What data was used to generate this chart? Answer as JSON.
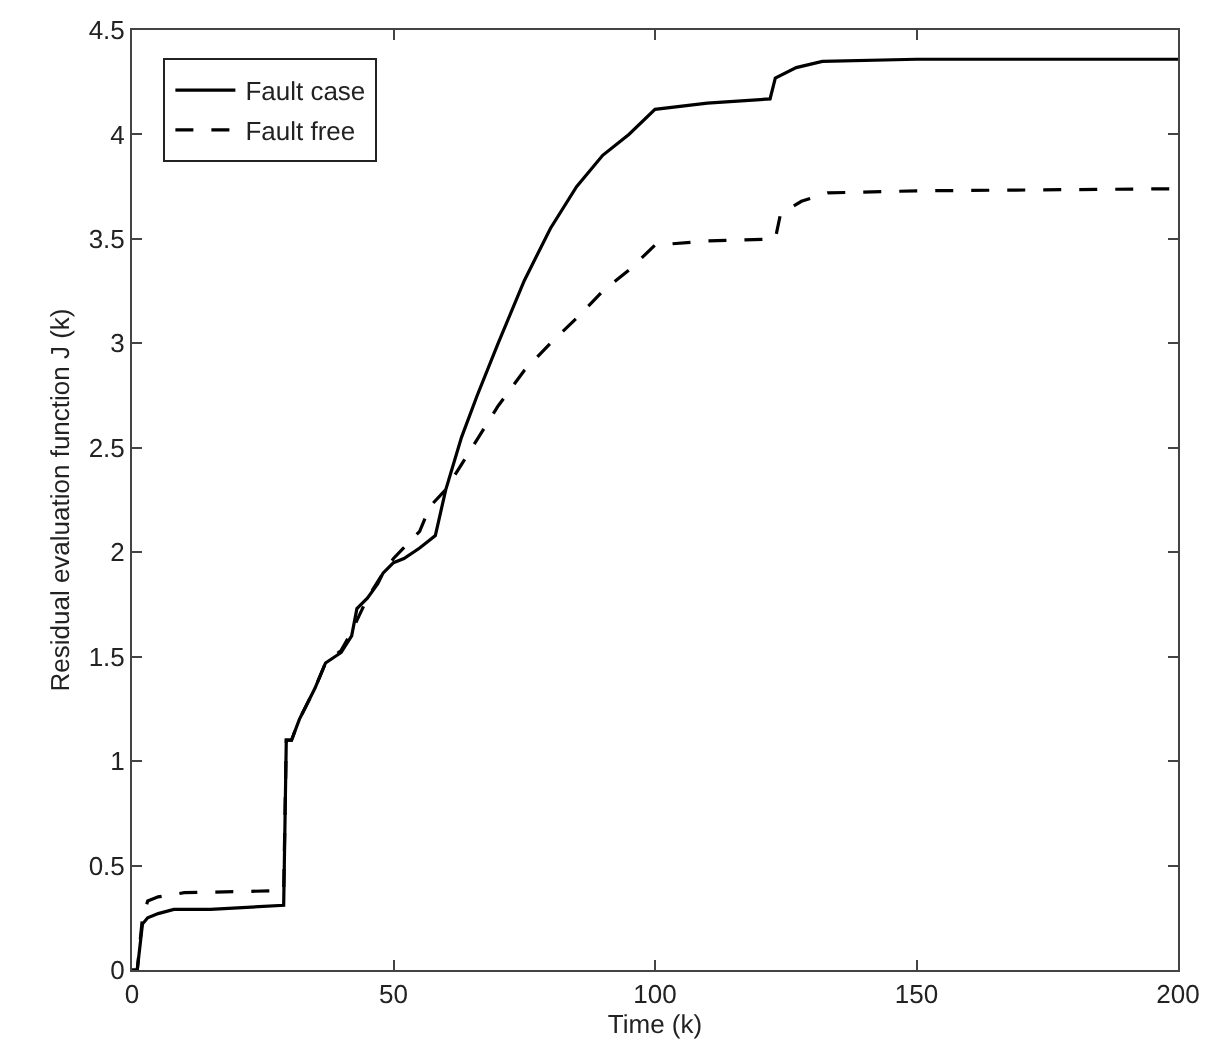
{
  "chart_data": {
    "type": "line",
    "xlabel": "Time (k)",
    "ylabel": "Residual evaluation function J (k)",
    "xlim": [
      0,
      200
    ],
    "ylim": [
      0,
      4.5
    ],
    "xticks": [
      0,
      50,
      100,
      150,
      200
    ],
    "yticks": [
      0,
      0.5,
      1,
      1.5,
      2,
      2.5,
      3,
      3.5,
      4,
      4.5
    ],
    "legend": "top left",
    "marker": "none",
    "series": [
      {
        "name": "Fault case",
        "color": "#000000",
        "line_style": "solid",
        "x": [
          0,
          1,
          2,
          3,
          5,
          8,
          15,
          29,
          29.5,
          30.5,
          32,
          35,
          37,
          40,
          42,
          43,
          45,
          47,
          48,
          50,
          52,
          55,
          57,
          58,
          60,
          63,
          66,
          70,
          75,
          80,
          85,
          90,
          95,
          100,
          110,
          122,
          123,
          127,
          132,
          150,
          200
        ],
        "values": [
          0,
          0,
          0.22,
          0.25,
          0.27,
          0.29,
          0.29,
          0.31,
          1.1,
          1.1,
          1.2,
          1.35,
          1.47,
          1.52,
          1.6,
          1.73,
          1.78,
          1.85,
          1.9,
          1.95,
          1.97,
          2.02,
          2.06,
          2.08,
          2.3,
          2.55,
          2.75,
          3.0,
          3.3,
          3.55,
          3.75,
          3.9,
          4.0,
          4.12,
          4.15,
          4.17,
          4.27,
          4.32,
          4.35,
          4.36,
          4.36
        ]
      },
      {
        "name": "Fault free",
        "color": "#000000",
        "line_style": "dashed",
        "x": [
          0,
          1,
          2,
          3,
          5,
          10,
          29,
          29.5,
          30.5,
          32,
          35,
          37,
          40,
          42,
          45,
          48,
          50,
          55,
          57,
          60,
          65,
          70,
          75,
          80,
          85,
          90,
          95,
          100,
          110,
          123,
          124,
          128,
          133,
          150,
          200
        ],
        "values": [
          0,
          0,
          0.25,
          0.33,
          0.35,
          0.37,
          0.38,
          1.1,
          1.1,
          1.2,
          1.35,
          1.47,
          1.53,
          1.62,
          1.78,
          1.9,
          1.97,
          2.1,
          2.22,
          2.3,
          2.5,
          2.7,
          2.87,
          3.0,
          3.12,
          3.25,
          3.35,
          3.47,
          3.49,
          3.5,
          3.62,
          3.68,
          3.72,
          3.73,
          3.74
        ]
      }
    ]
  }
}
